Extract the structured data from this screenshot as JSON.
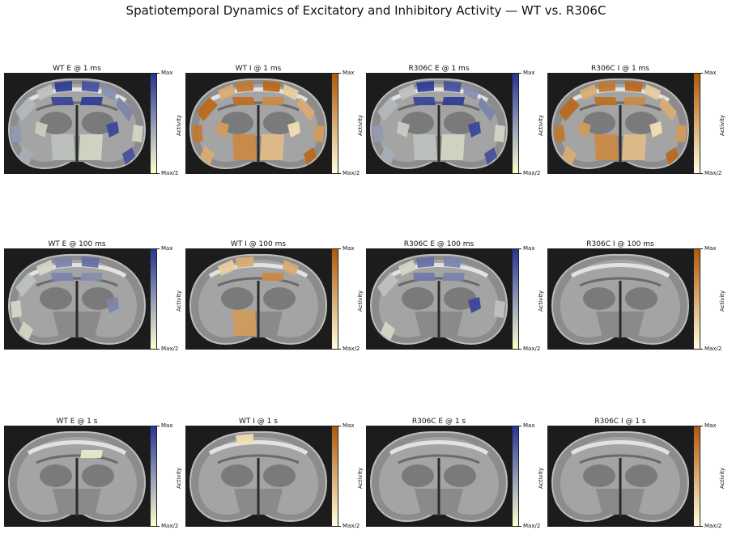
{
  "title": "Spatiotemporal Dynamics of Excitatory and Inhibitory Activity — WT vs. R306C",
  "colorbar": {
    "max_label": "Max",
    "min_label": "Max/2",
    "axis_label": "Activity"
  },
  "colormaps": {
    "excitatory": {
      "low": "#ffffd0",
      "high": "#253494"
    },
    "inhibitory": {
      "low": "#ffffe0",
      "high": "#b35806"
    }
  },
  "panels": [
    {
      "title": "WT E @ 1 ms",
      "cmap": "excitatory",
      "regions": [
        0.35,
        0.3,
        0.95,
        0.85,
        0.55,
        0.6,
        0.9,
        0.95,
        0.5,
        0.2,
        0.4,
        0.85,
        0.3,
        0.2,
        0.25,
        0.9
      ]
    },
    {
      "title": "WT I @ 1 ms",
      "cmap": "inhibitory",
      "regions": [
        0.9,
        0.5,
        0.8,
        0.9,
        0.3,
        0.5,
        0.85,
        0.7,
        0.8,
        0.6,
        0.5,
        0.9,
        0.7,
        0.4,
        0.6,
        0.2
      ]
    },
    {
      "title": "R306C E @ 1 ms",
      "cmap": "excitatory",
      "regions": [
        0.35,
        0.3,
        0.95,
        0.85,
        0.55,
        0.6,
        0.9,
        0.95,
        0.5,
        0.2,
        0.4,
        0.85,
        0.3,
        0.2,
        0.25,
        0.9
      ]
    },
    {
      "title": "R306C I @ 1 ms",
      "cmap": "inhibitory",
      "regions": [
        0.9,
        0.5,
        0.8,
        0.9,
        0.3,
        0.5,
        0.85,
        0.7,
        0.8,
        0.6,
        0.5,
        0.9,
        0.7,
        0.4,
        0.6,
        0.2
      ]
    },
    {
      "title": "WT E @ 100 ms",
      "cmap": "excitatory",
      "regions": [
        0.3,
        0.2,
        0.6,
        0.7,
        0.0,
        0.0,
        0.6,
        0.55,
        0.2,
        0.0,
        0.2,
        0.0,
        0.0,
        0.0,
        0.0,
        0.6
      ]
    },
    {
      "title": "WT I @ 100 ms",
      "cmap": "inhibitory",
      "regions": [
        0.0,
        0.3,
        0.5,
        0.0,
        0.5,
        0.0,
        0.0,
        0.7,
        0.0,
        0.0,
        0.0,
        0.0,
        0.6,
        0.0,
        0.0,
        0.0
      ]
    },
    {
      "title": "R306C E @ 100 ms",
      "cmap": "excitatory",
      "regions": [
        0.3,
        0.2,
        0.7,
        0.6,
        0.0,
        0.0,
        0.65,
        0.6,
        0.0,
        0.3,
        0.2,
        0.0,
        0.0,
        0.0,
        0.0,
        0.9
      ]
    },
    {
      "title": "R306C I @ 100 ms",
      "cmap": "inhibitory",
      "regions": [
        0.0,
        0.0,
        0.0,
        0.0,
        0.0,
        0.0,
        0.0,
        0.0,
        0.0,
        0.0,
        0.0,
        0.0,
        0.0,
        0.0,
        0.0,
        0.0
      ]
    },
    {
      "title": "WT E @ 1 s",
      "cmap": "excitatory",
      "regions": [
        0.0,
        0.0,
        0.0,
        0.0,
        0.0,
        0.0,
        0.0,
        0.1,
        0.0,
        0.0,
        0.0,
        0.0,
        0.0,
        0.0,
        0.0,
        0.0
      ]
    },
    {
      "title": "WT I @ 1 s",
      "cmap": "inhibitory",
      "regions": [
        0.0,
        0.0,
        0.2,
        0.0,
        0.0,
        0.0,
        0.0,
        0.0,
        0.0,
        0.0,
        0.0,
        0.0,
        0.0,
        0.0,
        0.0,
        0.0
      ]
    },
    {
      "title": "R306C E @ 1 s",
      "cmap": "excitatory",
      "regions": [
        0.0,
        0.0,
        0.0,
        0.0,
        0.0,
        0.0,
        0.0,
        0.0,
        0.0,
        0.0,
        0.0,
        0.0,
        0.0,
        0.0,
        0.0,
        0.0
      ]
    },
    {
      "title": "R306C I @ 1 s",
      "cmap": "inhibitory",
      "regions": [
        0.0,
        0.0,
        0.0,
        0.0,
        0.0,
        0.0,
        0.0,
        0.0,
        0.0,
        0.0,
        0.0,
        0.0,
        0.0,
        0.0,
        0.0,
        0.0
      ]
    }
  ]
}
